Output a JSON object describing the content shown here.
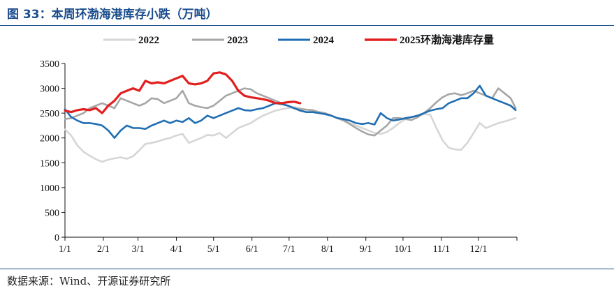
{
  "title": "图 33：本周环渤海港库存小跌（万吨）",
  "source": "数据来源：Wind、开源证券研究所",
  "chart_data": {
    "type": "line",
    "categories": [
      "1/1",
      "2/1",
      "3/1",
      "4/1",
      "5/1",
      "6/1",
      "7/1",
      "8/1",
      "9/1",
      "10/1",
      "11/1",
      "12/1"
    ],
    "x": [
      0,
      31,
      59,
      90,
      120,
      151,
      181,
      212,
      243,
      273,
      304,
      334
    ],
    "ylim": [
      0,
      3500
    ],
    "yticks": [
      0,
      500,
      1000,
      1500,
      2000,
      2500,
      3000,
      3500
    ],
    "legend_position": "top",
    "series": [
      {
        "name": "2022",
        "color": "#d6d6d6",
        "x": [
          0,
          5,
          10,
          15,
          20,
          25,
          30,
          35,
          40,
          45,
          50,
          55,
          60,
          65,
          70,
          75,
          80,
          85,
          90,
          95,
          100,
          105,
          110,
          115,
          120,
          125,
          130,
          135,
          140,
          145,
          150,
          155,
          160,
          165,
          170,
          175,
          180,
          185,
          190,
          195,
          200,
          205,
          210,
          215,
          220,
          225,
          230,
          235,
          240,
          245,
          250,
          255,
          260,
          265,
          270,
          275,
          280,
          285,
          290,
          295,
          300,
          305,
          310,
          315,
          320,
          325,
          330,
          335,
          340,
          345,
          350,
          355,
          360,
          364
        ],
        "values": [
          2170,
          2050,
          1850,
          1720,
          1640,
          1570,
          1520,
          1560,
          1590,
          1610,
          1580,
          1630,
          1750,
          1880,
          1900,
          1930,
          1970,
          2000,
          2050,
          2080,
          1900,
          1950,
          2000,
          2060,
          2050,
          2100,
          2000,
          2100,
          2200,
          2250,
          2300,
          2380,
          2450,
          2500,
          2550,
          2580,
          2600,
          2620,
          2600,
          2570,
          2550,
          2520,
          2500,
          2450,
          2400,
          2350,
          2300,
          2250,
          2200,
          2150,
          2100,
          2080,
          2120,
          2200,
          2300,
          2380,
          2420,
          2450,
          2480,
          2470,
          2200,
          1950,
          1800,
          1770,
          1760,
          1900,
          2100,
          2300,
          2200,
          2250,
          2300,
          2330,
          2370,
          2400
        ]
      },
      {
        "name": "2023",
        "color": "#a6a6a6",
        "x": [
          0,
          5,
          10,
          15,
          20,
          25,
          30,
          35,
          40,
          45,
          50,
          55,
          60,
          65,
          70,
          75,
          80,
          85,
          90,
          95,
          100,
          105,
          110,
          115,
          120,
          125,
          130,
          135,
          140,
          145,
          150,
          155,
          160,
          165,
          170,
          175,
          180,
          185,
          190,
          195,
          200,
          205,
          210,
          215,
          220,
          225,
          230,
          235,
          240,
          245,
          250,
          255,
          260,
          265,
          270,
          275,
          280,
          285,
          290,
          295,
          300,
          305,
          310,
          315,
          320,
          325,
          330,
          335,
          340,
          345,
          350,
          355,
          360,
          364
        ],
        "values": [
          2380,
          2400,
          2450,
          2500,
          2600,
          2650,
          2700,
          2650,
          2600,
          2800,
          2750,
          2700,
          2650,
          2700,
          2800,
          2780,
          2700,
          2750,
          2800,
          2950,
          2700,
          2650,
          2620,
          2600,
          2650,
          2750,
          2850,
          2900,
          2950,
          3000,
          2980,
          2900,
          2850,
          2800,
          2750,
          2700,
          2650,
          2600,
          2580,
          2570,
          2560,
          2520,
          2500,
          2450,
          2400,
          2350,
          2280,
          2200,
          2130,
          2070,
          2050,
          2150,
          2250,
          2400,
          2400,
          2380,
          2360,
          2420,
          2500,
          2600,
          2720,
          2820,
          2880,
          2900,
          2860,
          2900,
          2950,
          2900,
          2850,
          2800,
          3000,
          2900,
          2800,
          2600
        ]
      },
      {
        "name": "2024",
        "color": "#1f6db3",
        "x": [
          0,
          5,
          10,
          15,
          20,
          25,
          30,
          35,
          40,
          45,
          50,
          55,
          60,
          65,
          70,
          75,
          80,
          85,
          90,
          95,
          100,
          105,
          110,
          115,
          120,
          125,
          130,
          135,
          140,
          145,
          150,
          155,
          160,
          165,
          170,
          175,
          180,
          185,
          190,
          195,
          200,
          205,
          210,
          215,
          220,
          225,
          230,
          235,
          240,
          245,
          250,
          255,
          260,
          265,
          270,
          275,
          280,
          285,
          290,
          295,
          300,
          305,
          310,
          315,
          320,
          325,
          330,
          335,
          340,
          345,
          350,
          355,
          360,
          364
        ],
        "values": [
          2580,
          2420,
          2350,
          2300,
          2300,
          2280,
          2250,
          2150,
          2000,
          2150,
          2250,
          2200,
          2200,
          2180,
          2250,
          2300,
          2350,
          2300,
          2350,
          2320,
          2400,
          2300,
          2350,
          2450,
          2400,
          2450,
          2500,
          2550,
          2600,
          2560,
          2550,
          2580,
          2600,
          2650,
          2700,
          2680,
          2650,
          2600,
          2550,
          2520,
          2520,
          2500,
          2480,
          2450,
          2400,
          2380,
          2350,
          2300,
          2280,
          2300,
          2270,
          2500,
          2400,
          2350,
          2370,
          2400,
          2420,
          2450,
          2500,
          2550,
          2580,
          2600,
          2700,
          2750,
          2800,
          2800,
          2900,
          3050,
          2850,
          2800,
          2750,
          2700,
          2650,
          2560
        ]
      },
      {
        "name": "2025环渤海港库存量",
        "color": "#e31e1e",
        "x": [
          0,
          5,
          10,
          15,
          20,
          25,
          30,
          35,
          40,
          45,
          50,
          55,
          60,
          65,
          70,
          75,
          80,
          85,
          90,
          95,
          100,
          105,
          110,
          115,
          120,
          125,
          130,
          135,
          140,
          145,
          150,
          155,
          160,
          165,
          170,
          175,
          180,
          185,
          190
        ],
        "values": [
          2550,
          2520,
          2560,
          2580,
          2560,
          2600,
          2500,
          2650,
          2750,
          2900,
          2950,
          3000,
          2950,
          3150,
          3100,
          3120,
          3100,
          3150,
          3200,
          3250,
          3100,
          3080,
          3100,
          3150,
          3300,
          3320,
          3280,
          3150,
          2950,
          2850,
          2820,
          2800,
          2780,
          2750,
          2700,
          2700,
          2720,
          2730,
          2700
        ]
      }
    ]
  }
}
